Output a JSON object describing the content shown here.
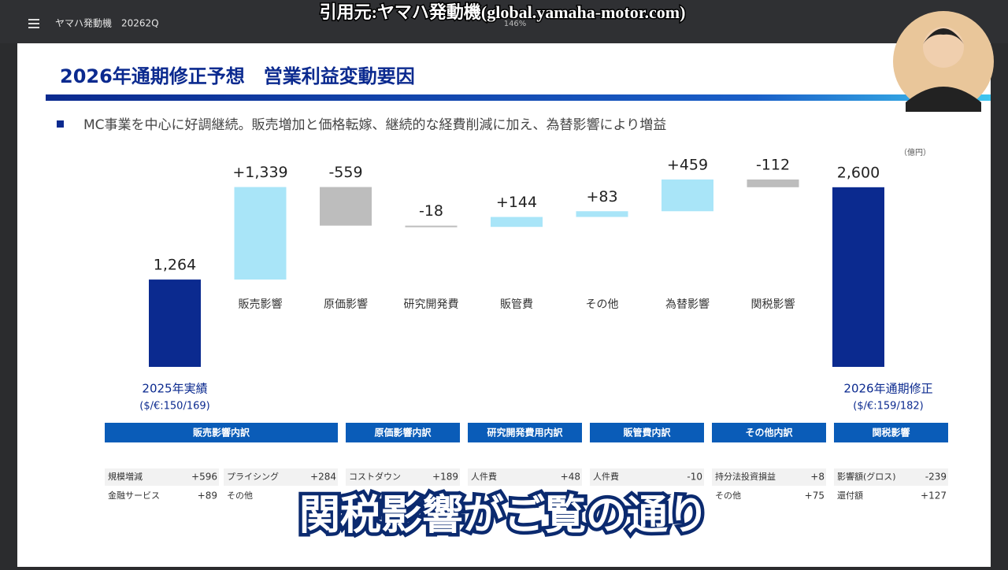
{
  "toolbar": {
    "doc_title": "ヤマハ発動機　20262Q",
    "zoom": "146%"
  },
  "overlay": {
    "source": "引用元:ヤマハ発動機(global.yamaha-motor.com)",
    "caption": "関税影響がご覧の通り"
  },
  "slide": {
    "title": "2026年通期修正予想　営業利益変動要因",
    "bullet": "MC事業を中心に好調継続。販売増加と価格転嫁、継続的な経費削減に加え、為替影響により増益",
    "unit": "（億円）"
  },
  "chart_data": {
    "type": "waterfall",
    "categories": [
      "2025年実績",
      "販売影響",
      "原価影響",
      "研究開発費",
      "販管費",
      "その他",
      "為替影響",
      "関税影響",
      "2026年通期修正"
    ],
    "values": [
      1264,
      1339,
      -559,
      -18,
      144,
      83,
      459,
      -112,
      2600
    ],
    "value_labels": [
      "1,264",
      "+1,339",
      "-559",
      "-18",
      "+144",
      "+83",
      "+459",
      "-112",
      "2,600"
    ],
    "start_note": "($/€:150/169)",
    "end_note": "($/€:159/182)",
    "colors": {
      "total": "#0b2a8f",
      "increase": "#a9e5f8",
      "decrease": "#bdbdbd"
    }
  },
  "breakdown": [
    {
      "title": "販売影響内訳",
      "items": [
        [
          "規模増減",
          "+596"
        ],
        [
          "金融サービス",
          "+89"
        ],
        [
          "プライシング",
          "+284"
        ],
        [
          "その他"
        ]
      ]
    },
    {
      "title": "原価影響内訳",
      "items": [
        [
          "コストダウン",
          "+189"
        ]
      ]
    },
    {
      "title": "研究開発費用内訳",
      "items": [
        [
          "人件費",
          "+48"
        ]
      ]
    },
    {
      "title": "販管費内訳",
      "items": [
        [
          "人件費",
          "-10"
        ]
      ]
    },
    {
      "title": "その他内訳",
      "items": [
        [
          "持分法投資損益",
          "+8"
        ],
        [
          "その他",
          "+75"
        ]
      ]
    },
    {
      "title": "関税影響",
      "items": [
        [
          "影響額(グロス)",
          "-239"
        ],
        [
          "還付額",
          "+127"
        ]
      ]
    }
  ]
}
